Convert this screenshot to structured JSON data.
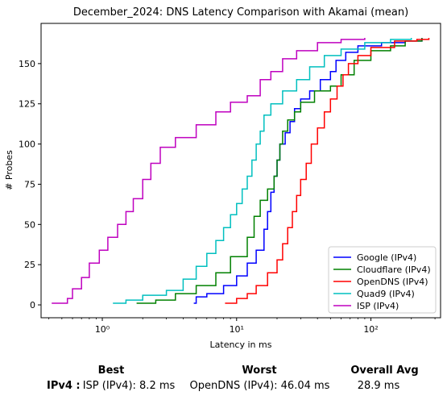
{
  "chart_data": {
    "type": "line",
    "title": "December_2024: DNS Latency Comparison with Akamai (mean)",
    "xlabel": "Latency in ms",
    "ylabel": "# Probes",
    "xscale": "log",
    "xlim": [
      0.35,
      330
    ],
    "ylim": [
      -8,
      175
    ],
    "xticks": [
      1,
      10,
      100
    ],
    "xtick_labels": [
      "10⁰",
      "10¹",
      "10²"
    ],
    "yticks": [
      0,
      25,
      50,
      75,
      100,
      125,
      150
    ],
    "legend_position": "lower-right",
    "grid": false,
    "series": [
      {
        "name": "Google (IPv4)",
        "color": "#0000ff",
        "points": [
          [
            4.8,
            1
          ],
          [
            5,
            5
          ],
          [
            6,
            7
          ],
          [
            8,
            12
          ],
          [
            10,
            18
          ],
          [
            12,
            26
          ],
          [
            14,
            34
          ],
          [
            16,
            47
          ],
          [
            17,
            58
          ],
          [
            18,
            70
          ],
          [
            19,
            80
          ],
          [
            20,
            90
          ],
          [
            21,
            100
          ],
          [
            23,
            107
          ],
          [
            25,
            114
          ],
          [
            27,
            122
          ],
          [
            30,
            128
          ],
          [
            35,
            133
          ],
          [
            42,
            140
          ],
          [
            50,
            145
          ],
          [
            55,
            152
          ],
          [
            65,
            157
          ],
          [
            80,
            161
          ],
          [
            120,
            163
          ],
          [
            180,
            164
          ],
          [
            240,
            166
          ]
        ]
      },
      {
        "name": "Cloudflare (IPv4)",
        "color": "#008000",
        "points": [
          [
            1.8,
            1
          ],
          [
            2.5,
            3
          ],
          [
            3.5,
            7
          ],
          [
            5,
            12
          ],
          [
            7,
            20
          ],
          [
            9,
            30
          ],
          [
            12,
            42
          ],
          [
            13.5,
            55
          ],
          [
            15,
            65
          ],
          [
            17,
            72
          ],
          [
            19,
            80
          ],
          [
            20,
            90
          ],
          [
            21,
            100
          ],
          [
            22,
            108
          ],
          [
            24,
            115
          ],
          [
            27,
            120
          ],
          [
            30,
            126
          ],
          [
            38,
            133
          ],
          [
            50,
            136
          ],
          [
            60,
            143
          ],
          [
            75,
            152
          ],
          [
            100,
            158
          ],
          [
            140,
            161
          ],
          [
            180,
            164
          ],
          [
            240,
            166
          ]
        ]
      },
      {
        "name": "OpenDNS (IPv4)",
        "color": "#ff0000",
        "points": [
          [
            8.2,
            1
          ],
          [
            10,
            4
          ],
          [
            12,
            7
          ],
          [
            14,
            12
          ],
          [
            17,
            20
          ],
          [
            20,
            28
          ],
          [
            22,
            38
          ],
          [
            24,
            48
          ],
          [
            26,
            58
          ],
          [
            28,
            68
          ],
          [
            30,
            78
          ],
          [
            33,
            88
          ],
          [
            36,
            100
          ],
          [
            40,
            110
          ],
          [
            45,
            120
          ],
          [
            50,
            128
          ],
          [
            56,
            136
          ],
          [
            62,
            143
          ],
          [
            68,
            150
          ],
          [
            80,
            155
          ],
          [
            100,
            160
          ],
          [
            150,
            164
          ],
          [
            220,
            165
          ],
          [
            270,
            166
          ]
        ]
      },
      {
        "name": "Quad9 (IPv4)",
        "color": "#00bfbf",
        "points": [
          [
            1.2,
            1
          ],
          [
            1.5,
            3
          ],
          [
            2,
            6
          ],
          [
            3,
            9
          ],
          [
            4,
            16
          ],
          [
            5,
            24
          ],
          [
            6,
            32
          ],
          [
            7,
            40
          ],
          [
            8,
            48
          ],
          [
            9,
            56
          ],
          [
            10,
            63
          ],
          [
            11,
            72
          ],
          [
            12,
            80
          ],
          [
            13,
            90
          ],
          [
            14,
            100
          ],
          [
            15,
            108
          ],
          [
            16,
            118
          ],
          [
            18,
            125
          ],
          [
            22,
            133
          ],
          [
            28,
            140
          ],
          [
            35,
            148
          ],
          [
            45,
            155
          ],
          [
            60,
            159
          ],
          [
            90,
            163
          ],
          [
            140,
            165
          ],
          [
            200,
            166
          ]
        ]
      },
      {
        "name": "ISP (IPv4)",
        "color": "#bf00bf",
        "points": [
          [
            0.42,
            1
          ],
          [
            0.55,
            4
          ],
          [
            0.6,
            10
          ],
          [
            0.7,
            17
          ],
          [
            0.8,
            26
          ],
          [
            0.95,
            34
          ],
          [
            1.1,
            42
          ],
          [
            1.3,
            50
          ],
          [
            1.5,
            58
          ],
          [
            1.7,
            66
          ],
          [
            2,
            78
          ],
          [
            2.3,
            88
          ],
          [
            2.7,
            98
          ],
          [
            3.5,
            104
          ],
          [
            5,
            112
          ],
          [
            7,
            120
          ],
          [
            9,
            126
          ],
          [
            12,
            130
          ],
          [
            15,
            140
          ],
          [
            18,
            145
          ],
          [
            22,
            153
          ],
          [
            28,
            158
          ],
          [
            40,
            163
          ],
          [
            60,
            165
          ],
          [
            90,
            166
          ]
        ]
      }
    ]
  },
  "summary": {
    "best_header": "Best",
    "worst_header": "Worst",
    "avg_header": "Overall Avg",
    "row_label": "IPv4 :",
    "best_value": "ISP (IPv4): 8.2 ms",
    "worst_value": "OpenDNS (IPv4): 46.04 ms",
    "avg_value": "28.9 ms"
  }
}
